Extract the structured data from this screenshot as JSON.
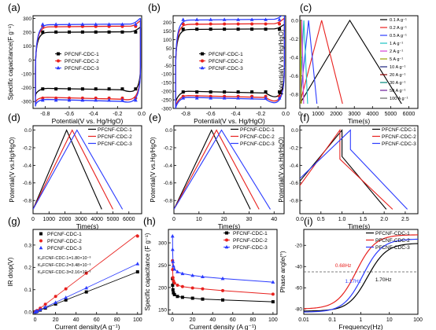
{
  "colors": {
    "s1": "#000000",
    "s2": "#e8211e",
    "s3": "#2b3bff",
    "fit": "#888888",
    "ref": "#555555"
  },
  "chart_data": [
    {
      "panel": "(a)",
      "type": "line",
      "xlabel": "Potential(V vs. Hg/HgO)",
      "ylabel": "Specific capacitance(F g⁻¹)",
      "xlim": [
        -0.9,
        0.0
      ],
      "ylim": [
        -350,
        320
      ],
      "xticks": [
        -0.8,
        -0.6,
        -0.4,
        -0.2,
        0.0
      ],
      "yticks": [
        -300,
        -200,
        -100,
        0,
        100,
        200,
        300
      ],
      "xticklabels": [
        "-0.8",
        "-0.6",
        "-0.4",
        "-0.2",
        "0.0"
      ],
      "yticklabels": [
        "-300",
        "-200",
        "-100",
        "0",
        "100",
        "200",
        "300"
      ],
      "legend": "center",
      "legend_labels": [
        "PFCNF-CDC-1",
        "PFCNF-CDC-2",
        "PFCNF-CDC-3"
      ],
      "series": [
        {
          "name": "PFCNF-CDC-1",
          "cv": {
            "x0": -0.88,
            "x1": -0.01,
            "top": 200,
            "bot": -205,
            "topL": 180,
            "botR": -250
          }
        },
        {
          "name": "PFCNF-CDC-2",
          "cv": {
            "x0": -0.88,
            "x1": -0.01,
            "top": 240,
            "bot": -270,
            "topL": 210,
            "botR": -300
          }
        },
        {
          "name": "PFCNF-CDC-3",
          "cv": {
            "x0": -0.88,
            "x1": -0.01,
            "top": 255,
            "bot": -285,
            "topL": 220,
            "botR": -320
          }
        }
      ]
    },
    {
      "panel": "(b)",
      "type": "line",
      "xlabel": "Potential(V vs. Hg/HgO)",
      "ylabel": "",
      "xlim": [
        -0.9,
        0.0
      ],
      "ylim": [
        -300,
        240
      ],
      "xticks": [
        -0.8,
        -0.6,
        -0.4,
        -0.2,
        0.0
      ],
      "yticks": [
        -300,
        -250,
        -200,
        -150,
        -100,
        -50,
        0,
        50,
        100,
        150,
        200
      ],
      "xticklabels": [
        "-0.8",
        "-0.6",
        "-0.4",
        "-0.2",
        "0.0"
      ],
      "yticklabels": [
        "-300",
        "-250",
        "-200",
        "-150",
        "-100",
        "-50",
        "0",
        "50",
        "100",
        "150",
        "200"
      ],
      "legend": "center",
      "legend_labels": [
        "PFCNF-CDC-1",
        "PFCNF-CDC-2",
        "PFCNF-CDC-3"
      ],
      "series": [
        {
          "name": "PFCNF-CDC-1",
          "cv": {
            "x0": -0.88,
            "x1": -0.01,
            "top": 160,
            "bot": -200,
            "topL": 145,
            "botR": -260
          }
        },
        {
          "name": "PFCNF-CDC-2",
          "cv": {
            "x0": -0.88,
            "x1": -0.01,
            "top": 190,
            "bot": -225,
            "topL": 175,
            "botR": -285
          }
        },
        {
          "name": "PFCNF-CDC-3",
          "cv": {
            "x0": -0.88,
            "x1": -0.01,
            "top": 215,
            "bot": -235,
            "topL": 195,
            "botR": -295
          }
        }
      ]
    },
    {
      "panel": "(c)",
      "type": "line",
      "xlabel": "Time(s)",
      "ylabel": "Potential(V vs Hg/HgO)",
      "xlim": [
        0,
        6500
      ],
      "ylim": [
        -0.95,
        0.05
      ],
      "xticks": [
        0,
        1000,
        2000,
        3000,
        4000,
        5000,
        6000
      ],
      "yticks": [
        -0.8,
        -0.6,
        -0.4,
        -0.2,
        0.0
      ],
      "xticklabels": [
        "0",
        "1000",
        "2000",
        "3000",
        "4000",
        "5000",
        "6000"
      ],
      "yticklabels": [
        "-0.8",
        "-0.6",
        "-0.4",
        "-0.2",
        "0.0"
      ],
      "legend": "right",
      "legend_labels": [
        "0.1 A g⁻¹",
        "0.2 A g⁻¹",
        "0.5 A g⁻¹",
        "1 A g⁻¹",
        "2 A g⁻¹",
        "5 A g⁻¹",
        "10 A g⁻¹",
        "20 A g⁻¹",
        "30 A g⁻¹",
        "50 A g⁻¹",
        "100 A g⁻¹"
      ],
      "legend_colors": [
        "#000000",
        "#e8211e",
        "#2b3bff",
        "#19c3c3",
        "#d43fd6",
        "#9aa000",
        "#1a237e",
        "#8b0000",
        "#00897b",
        "#6a1b9a",
        "#666666"
      ],
      "gcd": [
        {
          "peak": 2750,
          "end": 5600,
          "c": "#000000"
        },
        {
          "peak": 1200,
          "end": 2350,
          "c": "#e8211e"
        },
        {
          "peak": 480,
          "end": 940,
          "c": "#2b3bff"
        },
        {
          "peak": 220,
          "end": 430,
          "c": "#19c3c3"
        },
        {
          "peak": 110,
          "end": 210,
          "c": "#d43fd6"
        },
        {
          "peak": 45,
          "end": 85,
          "c": "#9aa000"
        }
      ]
    },
    {
      "panel": "(d)",
      "type": "line",
      "xlabel": "Time(s)",
      "ylabel": "Potential(V vs.Hg/HgO)",
      "xlim": [
        0,
        6800
      ],
      "ylim": [
        -0.95,
        0.05
      ],
      "xticks": [
        0,
        1000,
        2000,
        3000,
        4000,
        5000,
        6000
      ],
      "yticks": [
        -0.8,
        -0.6,
        -0.4,
        -0.2,
        0.0
      ],
      "xticklabels": [
        "0",
        "1000",
        "2000",
        "3000",
        "4000",
        "5000",
        "6000"
      ],
      "yticklabels": [
        "-0.8",
        "-0.6",
        "-0.4",
        "-0.2",
        "0.0"
      ],
      "legend": "top-right",
      "legend_labels": [
        "PFCNF-CDC-1",
        "PFCNF-CDC-2",
        "PFCNF-CDC-3"
      ],
      "gcd": [
        {
          "peak": 2100,
          "end": 4300,
          "c": "#000000"
        },
        {
          "peak": 2450,
          "end": 5000,
          "c": "#e8211e"
        },
        {
          "peak": 2750,
          "end": 5600,
          "c": "#2b3bff"
        }
      ]
    },
    {
      "panel": "(e)",
      "type": "line",
      "xlabel": "Time(s)",
      "ylabel": "Potential(V vs.Hg/HgO)",
      "xlim": [
        0,
        44
      ],
      "ylim": [
        -0.95,
        0.05
      ],
      "xticks": [
        0,
        10,
        20,
        30,
        40
      ],
      "yticks": [
        -0.8,
        -0.6,
        -0.4,
        -0.2,
        0.0
      ],
      "xticklabels": [
        "0",
        "10",
        "20",
        "30",
        "40"
      ],
      "yticklabels": [
        "-0.8",
        "-0.6",
        "-0.4",
        "-0.2",
        "0.0"
      ],
      "legend": "top-right",
      "legend_labels": [
        "PFCNF-CDC-1",
        "PFCNF-CDC-2",
        "PFCNF-CDC-3"
      ],
      "gcd": [
        {
          "peak": 15,
          "end": 30.5,
          "c": "#000000"
        },
        {
          "peak": 17,
          "end": 34,
          "c": "#e8211e"
        },
        {
          "peak": 19,
          "end": 38.5,
          "c": "#2b3bff"
        }
      ]
    },
    {
      "panel": "(f)",
      "type": "line",
      "xlabel": "Time(s)",
      "ylabel": "Potential(V vs.Hg/HgO)",
      "xlim": [
        0,
        2.8
      ],
      "ylim": [
        -0.95,
        0.05
      ],
      "xticks": [
        0,
        0.5,
        1.0,
        1.5,
        2.0,
        2.5
      ],
      "yticks": [
        -0.8,
        -0.6,
        -0.4,
        -0.2,
        0.0
      ],
      "xticklabels": [
        "0.0",
        "0.5",
        "1.0",
        "1.5",
        "2.0",
        "2.5"
      ],
      "yticklabels": [
        "-0.8",
        "-0.6",
        "-0.4",
        "-0.2",
        "0.0"
      ],
      "legend": "top-right",
      "legend_labels": [
        "PFCNF-CDC-1",
        "PFCNF-CDC-2",
        "PFCNF-CDC-3"
      ],
      "gcd_ir": [
        {
          "start": -0.58,
          "peak": 1.0,
          "drop": -0.3,
          "end": 2.05,
          "c": "#000000"
        },
        {
          "start": -0.63,
          "peak": 0.95,
          "drop": -0.33,
          "end": 2.2,
          "c": "#e8211e"
        },
        {
          "start": -0.55,
          "peak": 1.2,
          "drop": -0.22,
          "end": 2.55,
          "c": "#2b3bff"
        }
      ]
    },
    {
      "panel": "(g)",
      "type": "scatter",
      "xlabel": "Current density(A g⁻¹)",
      "ylabel": "IR drop(V)",
      "xlim": [
        -2,
        104
      ],
      "ylim": [
        -0.01,
        0.37
      ],
      "xticks": [
        0,
        20,
        40,
        60,
        80,
        100
      ],
      "yticks": [
        0.0,
        0.1,
        0.2,
        0.3
      ],
      "xticklabels": [
        "0",
        "20",
        "40",
        "60",
        "80",
        "100"
      ],
      "yticklabels": [
        "0.0",
        "0.1",
        "0.2",
        "0.3"
      ],
      "legend": "top-left",
      "legend_labels": [
        "PFCNF-CDC-1",
        "PFCNF-CDC-2",
        "PFCNF-CDC-3"
      ],
      "annotations": [
        "KₚFCNF-CDC-1=1.80×10⁻³",
        "KₚFCNF-CDC-2=3.48×10⁻³",
        "KₚFCNF-CDC-3=2.16×10⁻³"
      ],
      "x": [
        0.1,
        0.2,
        0.5,
        1,
        2,
        5,
        10,
        20,
        30,
        50,
        100
      ],
      "series": [
        {
          "name": "PFCNF-CDC-1",
          "slope": 0.0018,
          "values": [
            0.0002,
            0.0004,
            0.0009,
            0.0018,
            0.0036,
            0.009,
            0.018,
            0.036,
            0.054,
            0.09,
            0.18
          ]
        },
        {
          "name": "PFCNF-CDC-2",
          "slope": 0.00348,
          "values": [
            0.0003,
            0.0007,
            0.0017,
            0.0035,
            0.007,
            0.0174,
            0.035,
            0.07,
            0.104,
            0.174,
            0.34
          ]
        },
        {
          "name": "PFCNF-CDC-3",
          "slope": 0.00216,
          "values": [
            0.0002,
            0.0004,
            0.0011,
            0.0022,
            0.0043,
            0.0108,
            0.022,
            0.043,
            0.065,
            0.108,
            0.216
          ]
        }
      ]
    },
    {
      "panel": "(h)",
      "type": "line",
      "xlabel": "Current density (A g⁻¹)",
      "ylabel": "Specific capacitance (F g⁻¹)",
      "xlim": [
        -4,
        104
      ],
      "ylim": [
        140,
        330
      ],
      "xticks": [
        0,
        20,
        40,
        60,
        80,
        100
      ],
      "yticks": [
        150,
        200,
        250,
        300
      ],
      "xticklabels": [
        "0",
        "20",
        "40",
        "60",
        "80",
        "100"
      ],
      "yticklabels": [
        "150",
        "200",
        "250",
        "300"
      ],
      "legend": "top-right",
      "legend_labels": [
        "PFCNF-CDC-1",
        "PFCNF-CDC-2",
        "PFCNF-CDC-3"
      ],
      "x": [
        0.1,
        0.2,
        0.5,
        1,
        2,
        5,
        10,
        20,
        30,
        50,
        100
      ],
      "series": [
        {
          "name": "PFCNF-CDC-1",
          "values": [
            220,
            205,
            195,
            188,
            184,
            180,
            178,
            176,
            174,
            172,
            168
          ]
        },
        {
          "name": "PFCNF-CDC-2",
          "values": [
            260,
            240,
            222,
            215,
            210,
            205,
            202,
            199,
            197,
            193,
            185
          ]
        },
        {
          "name": "PFCNF-CDC-3",
          "values": [
            315,
            285,
            258,
            248,
            241,
            235,
            231,
            227,
            224,
            220,
            212
          ]
        }
      ]
    },
    {
      "panel": "(i)",
      "type": "line",
      "xlabel": "Frequency(Hz)",
      "ylabel": "Phase angle(°)",
      "xscale": "log",
      "xlim": [
        0.01,
        100
      ],
      "ylim": [
        -85,
        -5
      ],
      "xticks": [
        0.01,
        0.1,
        1,
        10,
        100
      ],
      "yticks": [
        -80,
        -60,
        -40,
        -20
      ],
      "xticklabels": [
        "0.01",
        "0.1",
        "1",
        "10",
        "100"
      ],
      "yticklabels": [
        "-80",
        "-60",
        "-40",
        "-20"
      ],
      "legend": "top-right",
      "legend_labels": [
        "PFCNF-CDC-1",
        "PFCNF-CDC-2",
        "PFCNF-CDC-3"
      ],
      "reference_line": -45,
      "annotations": [
        {
          "text": "0.68Hz",
          "f": 0.68
        },
        {
          "text": "1.17Hz",
          "f": 1.17
        },
        {
          "text": "1.70Hz",
          "f": 1.7
        }
      ],
      "bode": [
        {
          "fc": 1.7,
          "min": -82,
          "end": -18,
          "c": "#000000"
        },
        {
          "fc": 0.68,
          "min": -80,
          "end": -10,
          "c": "#e8211e"
        },
        {
          "fc": 1.17,
          "min": -83,
          "end": -14,
          "c": "#2b3bff"
        }
      ]
    }
  ]
}
